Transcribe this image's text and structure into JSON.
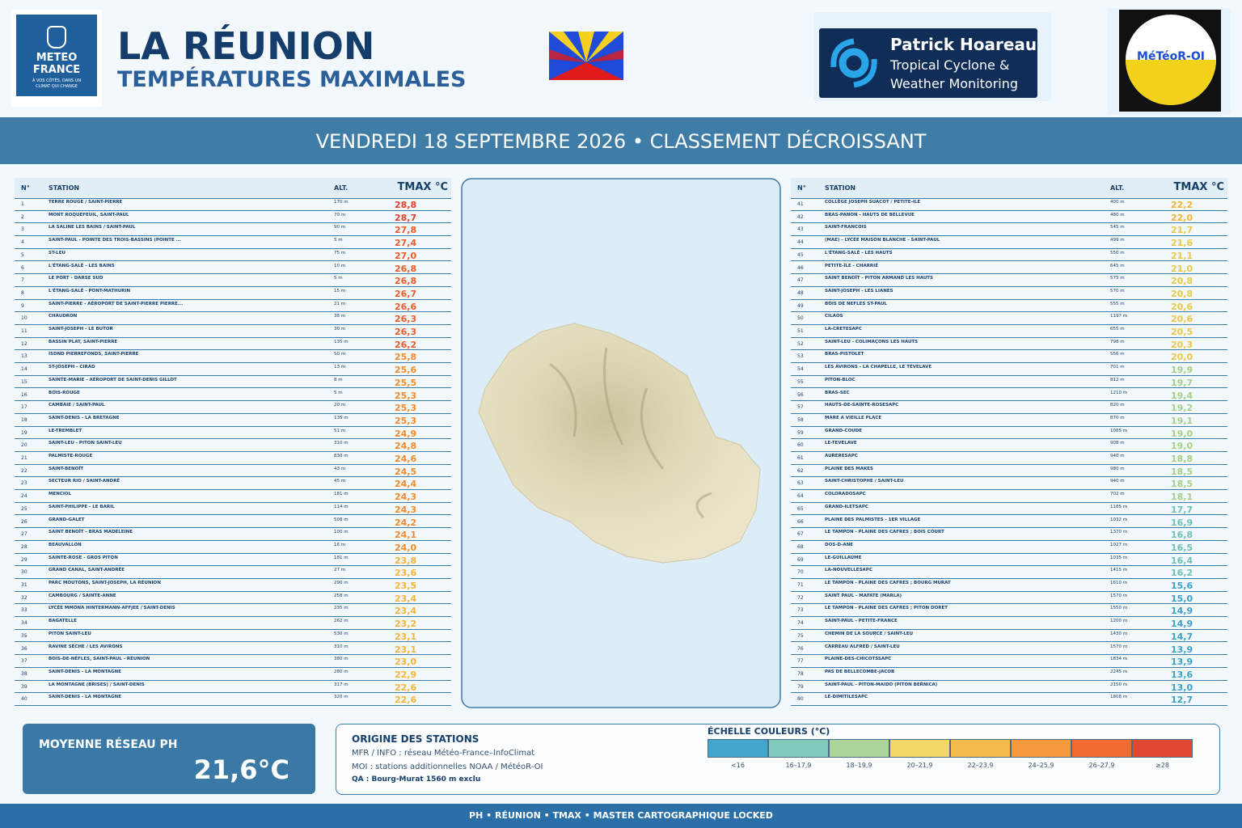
{
  "header": {
    "logo_left": {
      "line1": "METEO",
      "line2": "FRANCE",
      "tagline": "À VOS CÔTÉS, DANS UN CLIMAT QUI CHANGE"
    },
    "title": "LA RÉUNION",
    "subtitle": "TEMPÉRATURES MAXIMALES",
    "logo_ph": {
      "name": "Patrick Hoareau",
      "line1": "Tropical Cyclone &",
      "line2": "Weather Monitoring"
    },
    "logo_moi": "MéTéoR-OI"
  },
  "banner": "VENDREDI 18 SEPTEMBRE 2026 • CLASSEMENT DÉCROISSANT",
  "tables": [
    {
      "headers": [
        "N°",
        "STATION",
        "ALT.",
        "TMAX °C"
      ],
      "rows": [
        [
          "1",
          "TERRE ROUGE / SAINT-PIERRE",
          "170 m",
          "28,8",
          "#e0412b"
        ],
        [
          "2",
          "MONT ROQUEFEUIL, SAINT-PAUL",
          "70 m",
          "28,7",
          "#e0412b"
        ],
        [
          "3",
          "LA SALINE LES BAINS / SAINT-PAUL",
          "90 m",
          "27,8",
          "#ea5a2a"
        ],
        [
          "4",
          "SAINT-PAUL - POINTE DES TROIS-BASSINS (POINTE ...",
          "5 m",
          "27,4",
          "#ea5a2a"
        ],
        [
          "5",
          "ST-LEU",
          "75 m",
          "27,0",
          "#ea5a2a"
        ],
        [
          "6",
          "L'ÉTANG-SALÉ - LES BAINS",
          "10 m",
          "26,8",
          "#ea5a2a"
        ],
        [
          "7",
          "LE PORT - DARSE SUD",
          "5 m",
          "26,8",
          "#ea5a2a"
        ],
        [
          "8",
          "L'ÉTANG-SALÉ - PONT-MATHURIN",
          "15 m",
          "26,7",
          "#ea5a2a"
        ],
        [
          "9",
          "SAINT-PIERRE - AÉROPORT DE SAINT-PIERRE PIERRE...",
          "21 m",
          "26,6",
          "#ea5a2a"
        ],
        [
          "10",
          "CHAUDRON",
          "38 m",
          "26,3",
          "#ea5a2a"
        ],
        [
          "11",
          "SAINT-JOSEPH - LE BUTOR",
          "30 m",
          "26,3",
          "#ea5a2a"
        ],
        [
          "12",
          "BASSIN PLAT, SAINT-PIERRE",
          "135 m",
          "26,2",
          "#ea5a2a"
        ],
        [
          "13",
          "ISDND PIERREFONDS, SAINT-PIERRE",
          "50 m",
          "25,8",
          "#f08a2c"
        ],
        [
          "14",
          "ST-JOSEPH - CIRAD",
          "13 m",
          "25,6",
          "#f08a2c"
        ],
        [
          "15",
          "SAINTE-MARIE - AÉROPORT DE SAINT-DENIS GILLOT",
          "8 m",
          "25,5",
          "#f08a2c"
        ],
        [
          "16",
          "BOIS-ROUGE",
          "5 m",
          "25,3",
          "#f08a2c"
        ],
        [
          "17",
          "CAMBAIE / SAINT-PAUL",
          "20 m",
          "25,3",
          "#f08a2c"
        ],
        [
          "18",
          "SAINT-DENIS - LA BRETAGNE",
          "135 m",
          "25,3",
          "#f08a2c"
        ],
        [
          "19",
          "LE-TREMBLET",
          "51 m",
          "24,9",
          "#f08a2c"
        ],
        [
          "20",
          "SAINT-LEU - PITON SAINT-LEU",
          "310 m",
          "24,8",
          "#f08a2c"
        ],
        [
          "21",
          "PALMISTE-ROUGE",
          "830 m",
          "24,6",
          "#f08a2c"
        ],
        [
          "22",
          "SAINT-BENOÎT",
          "43 m",
          "24,5",
          "#f08a2c"
        ],
        [
          "23",
          "SECTEUR RIO / SAINT-ANDRÉ",
          "45 m",
          "24,4",
          "#f08a2c"
        ],
        [
          "24",
          "MENCIOL",
          "181 m",
          "24,3",
          "#f08a2c"
        ],
        [
          "25",
          "SAINT-PHILIPPE - LE BARIL",
          "114 m",
          "24,3",
          "#f08a2c"
        ],
        [
          "26",
          "GRAND-GALET",
          "508 m",
          "24,2",
          "#f08a2c"
        ],
        [
          "27",
          "SAINT BENOÎT - BRAS MADELEINE",
          "100 m",
          "24,1",
          "#f08a2c"
        ],
        [
          "28",
          "BEAUVALLON",
          "16 m",
          "24,0",
          "#f08a2c"
        ],
        [
          "29",
          "SAINTE-ROSE - GROS PITON",
          "181 m",
          "23,8",
          "#f2b43a"
        ],
        [
          "30",
          "GRAND CANAL, SAINT-ANDRÉE",
          "27 m",
          "23,6",
          "#f2b43a"
        ],
        [
          "31",
          "PARC  MOUTONS, SAINT-JOSEPH, LA RÉUNION",
          "290 m",
          "23,5",
          "#f2b43a"
        ],
        [
          "32",
          "CAMBOURG / SAINTE-ANNE",
          "258 m",
          "23,4",
          "#f2b43a"
        ],
        [
          "33",
          "LYCÉE MMONA HINTERMANN-AFFJEE / SAINT-DENIS",
          "235 m",
          "23,4",
          "#f2b43a"
        ],
        [
          "34",
          "BAGATELLE",
          "262 m",
          "23,2",
          "#f2b43a"
        ],
        [
          "35",
          "PITON SAINT-LEU",
          "530 m",
          "23,1",
          "#f2b43a"
        ],
        [
          "36",
          "RAVINE SÈCHE / LES AVIRONS",
          "310 m",
          "23,1",
          "#f2b43a"
        ],
        [
          "37",
          "BOIS-DE-NÈFLES, SAINT-PAUL - RÉUNION",
          "380 m",
          "23,0",
          "#f2b43a"
        ],
        [
          "38",
          "SAINT-DENIS - LA MONTAGNE",
          "280 m",
          "22,9",
          "#f2b43a"
        ],
        [
          "39",
          "LA MONTAGNE (BRISES) / SAINT-DENIS",
          "317 m",
          "22,6",
          "#f2b43a"
        ],
        [
          "40",
          "SAINT-DENIS - LA MONTAGNE",
          "320 m",
          "22,6",
          "#f2b43a"
        ]
      ]
    },
    {
      "headers": [
        "N°",
        "STATION",
        "ALT.",
        "TMAX °C"
      ],
      "rows": [
        [
          "41",
          "COLLÈGE JOSEPH SUACOT / PETITE-ILE",
          "400 m",
          "22,2",
          "#f2b43a"
        ],
        [
          "42",
          "BRAS-PANON - HAUTS DE BELLEVUE",
          "480 m",
          "22,0",
          "#f2b43a"
        ],
        [
          "43",
          "SAINT-FRANCOIS",
          "545 m",
          "21,7",
          "#e8c84a"
        ],
        [
          "44",
          "(MAE) - LYCÉE MAISON BLANCHE - SAINT-PAUL",
          "499 m",
          "21,6",
          "#e8c84a"
        ],
        [
          "45",
          "L'ÉTANG-SALÉ - LES HAUTS",
          "550 m",
          "21,1",
          "#e8c84a"
        ],
        [
          "46",
          "PETITE-ÎLE - CHARRIÉ",
          "645 m",
          "21,0",
          "#e8c84a"
        ],
        [
          "47",
          "SAINT BENOÎT - PITON ARMAND LES HAUTS",
          "575 m",
          "20,8",
          "#e8c84a"
        ],
        [
          "48",
          "SAINT-JOSEPH - LES LIANES",
          "570 m",
          "20,8",
          "#e8c84a"
        ],
        [
          "49",
          "BOIS DE NEFLES ST-PAUL",
          "555 m",
          "20,6",
          "#e8c84a"
        ],
        [
          "50",
          "CILAOS",
          "1197 m",
          "20,6",
          "#e8c84a"
        ],
        [
          "51",
          "LA-CRETESAPC",
          "655 m",
          "20,5",
          "#e8c84a"
        ],
        [
          "52",
          "SAINT-LEU - COLIMAÇONS LES HAUTS",
          "798 m",
          "20,3",
          "#e8c84a"
        ],
        [
          "53",
          "BRAS-PISTOLET",
          "556 m",
          "20,0",
          "#e8c84a"
        ],
        [
          "54",
          "LES AVIRONS - LA CHAPELLE, LE TÉVELAVE",
          "701 m",
          "19,9",
          "#a5cf8a"
        ],
        [
          "55",
          "PITON-BLOC",
          "812 m",
          "19,7",
          "#a5cf8a"
        ],
        [
          "56",
          "BRAS-SEC",
          "1210 m",
          "19,4",
          "#a5cf8a"
        ],
        [
          "57",
          "HAUTS-DE-SAINTE-ROSESAPC",
          "820 m",
          "19,2",
          "#a5cf8a"
        ],
        [
          "58",
          "MARE A VIEILLE PLACE",
          "870 m",
          "19,1",
          "#a5cf8a"
        ],
        [
          "59",
          "GRAND-COUDE",
          "1085 m",
          "19,0",
          "#a5cf8a"
        ],
        [
          "60",
          "LE-TEVELAVE",
          "908 m",
          "19,0",
          "#a5cf8a"
        ],
        [
          "61",
          "AURERESAPC",
          "940 m",
          "18,8",
          "#a5cf8a"
        ],
        [
          "62",
          "PLAINE DES MAKES",
          "980 m",
          "18,5",
          "#a5cf8a"
        ],
        [
          "63",
          "SAINT-CHRISTOPHE / SAINT-LEU",
          "940 m",
          "18,5",
          "#a5cf8a"
        ],
        [
          "64",
          "COLORADOSAPC",
          "702 m",
          "18,1",
          "#a5cf8a"
        ],
        [
          "65",
          "GRAND-ILETSAPC",
          "1185 m",
          "17,7",
          "#6fbfb3"
        ],
        [
          "66",
          "PLAINE DES PALMISTES - 1ER VILLAGE",
          "1032 m",
          "16,9",
          "#6fbfb3"
        ],
        [
          "67",
          "LE TAMPON - PLAINE DES CAFRES ; BOIS COURT",
          "1370 m",
          "16,8",
          "#6fbfb3"
        ],
        [
          "68",
          "DOS-D-ANE",
          "1027 m",
          "16,5",
          "#6fbfb3"
        ],
        [
          "69",
          "LE-GUILLAUME",
          "1035 m",
          "16,4",
          "#6fbfb3"
        ],
        [
          "70",
          "LA-NOUVELLESAPC",
          "1415 m",
          "16,2",
          "#6fbfb3"
        ],
        [
          "71",
          "LE TAMPON - PLAINE DES CAFRES ; BOURG MURAT",
          "1610 m",
          "15,6",
          "#3fa0c4"
        ],
        [
          "72",
          "SAINT PAUL - MAFATE (MARLA)",
          "1570 m",
          "15,0",
          "#3fa0c4"
        ],
        [
          "73",
          "LE TAMPON - PLAINE DES CAFRES ; PITON DORET",
          "1550 m",
          "14,9",
          "#3fa0c4"
        ],
        [
          "74",
          "SAINT-PAUL - PETITE-FRANCE",
          "1200 m",
          "14,9",
          "#3fa0c4"
        ],
        [
          "75",
          "CHEMIN DE LA SOURCE / SAINT-LEU",
          "1430 m",
          "14,7",
          "#3fa0c4"
        ],
        [
          "76",
          "CARREAU ALFRED / SAINT-LEU",
          "1570 m",
          "13,9",
          "#3fa0c4"
        ],
        [
          "77",
          "PLAINE-DES-CHICOTSSAPC",
          "1834 m",
          "13,9",
          "#3fa0c4"
        ],
        [
          "78",
          "PAS DE BELLECOMBE-JACOB",
          "2245 m",
          "13,6",
          "#3fa0c4"
        ],
        [
          "79",
          "SAINT-PAUL - PITON-MAIDO (PITON BERNICA)",
          "2150 m",
          "13,0",
          "#3fa0c4"
        ],
        [
          "80",
          "LE-DIMITILESAPC",
          "1808 m",
          "12,7",
          "#3fa0c4"
        ]
      ]
    }
  ],
  "average": {
    "label": "MOYENNE RÉSEAU PH",
    "value": "21,6°C"
  },
  "origin": {
    "title": "ORIGINE DES STATIONS",
    "lines": [
      "MFR / INFO : réseau Météo-France–InfoClimat",
      "MOI : stations additionnelles NOAA / MétéoR-OI",
      "QA : Bourg-Murat 1560 m exclu"
    ]
  },
  "scale": {
    "title": "ÉCHELLE COULEURS (°C)",
    "items": [
      {
        "label": "<16",
        "color": "#42a5cc"
      },
      {
        "label": "16–17,9",
        "color": "#7fc9bd"
      },
      {
        "label": "18–19,9",
        "color": "#acd699"
      },
      {
        "label": "20–21,9",
        "color": "#f3d868"
      },
      {
        "label": "22–23,9",
        "color": "#f4bb4b"
      },
      {
        "label": "24–25,9",
        "color": "#f39a3d"
      },
      {
        "label": "26–27,9",
        "color": "#ef6b30"
      },
      {
        "label": "≥28",
        "color": "#e04731"
      }
    ]
  },
  "footer": "PH • RÉUNION • TMAX • MASTER CARTOGRAPHIQUE LOCKED"
}
